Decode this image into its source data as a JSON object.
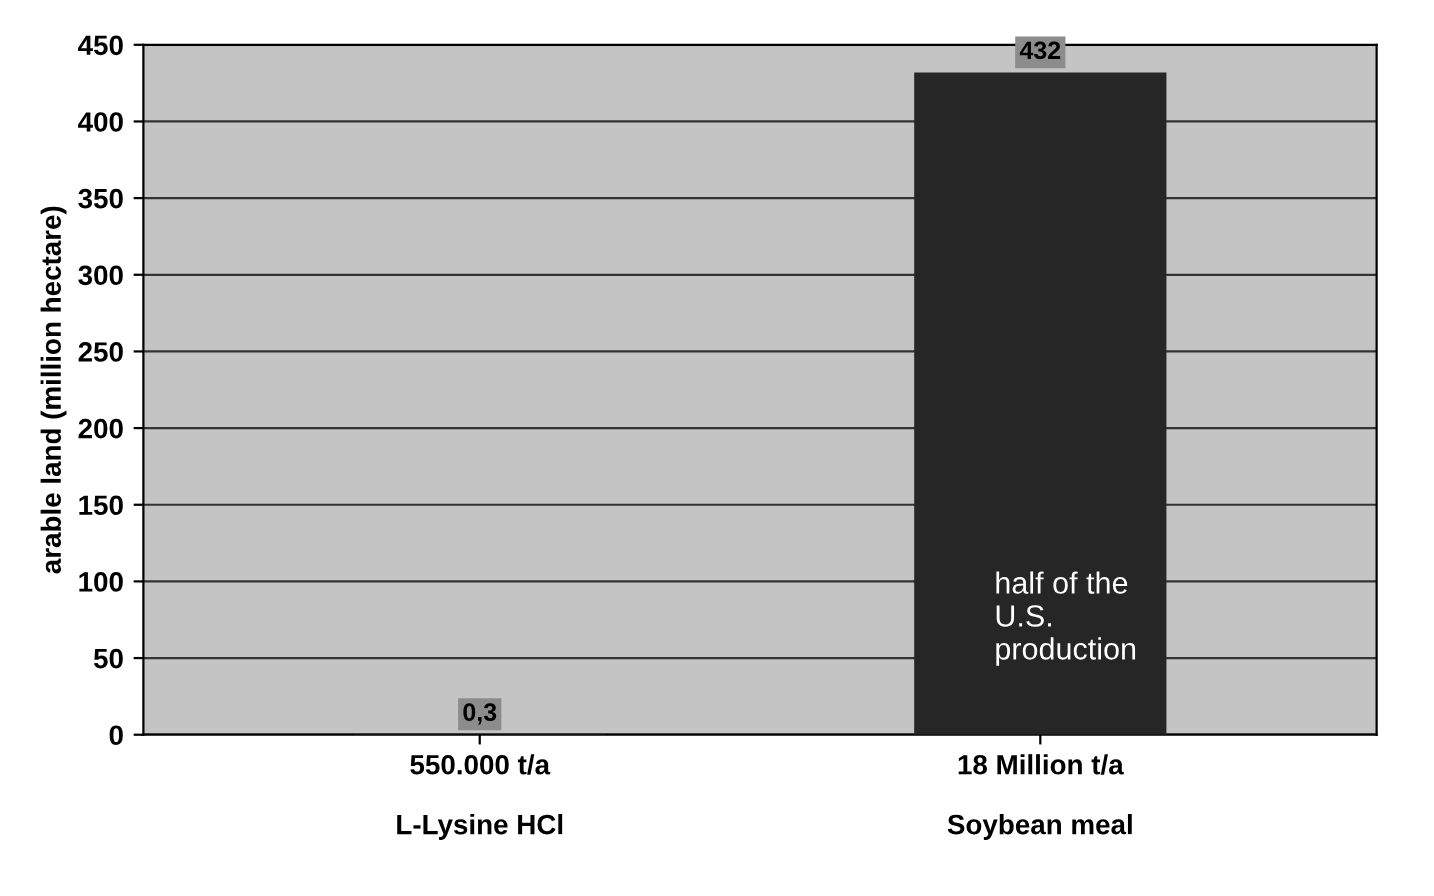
{
  "chart_data": {
    "type": "bar",
    "ylabel": "arable land (million hectare)",
    "categories": [
      "550.000 t/a\n\nL-Lysine HCl",
      "18 Million t/a\n\nSoybean meal"
    ],
    "values": [
      0.3,
      432
    ],
    "value_labels": [
      "0,3",
      "432"
    ],
    "color": "#262626",
    "ylim": [
      0,
      450
    ],
    "yticks": [
      0,
      50,
      100,
      150,
      200,
      250,
      300,
      350,
      400,
      450
    ],
    "grid": "y",
    "annotations": [
      "half of the\nU.S.\nproduction"
    ]
  }
}
